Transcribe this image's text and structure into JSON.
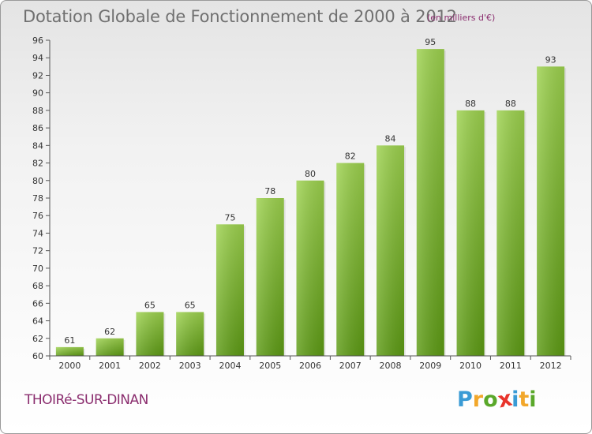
{
  "header": {
    "title": "Dotation Globale de Fonctionnement de 2000 à 2012",
    "unit_note": "(en milliers d'€)"
  },
  "footer": {
    "place_name": "THOIRé-SUR-DINAN",
    "logo_text": "Proxiti"
  },
  "colors": {
    "bar_top": "#9dd24e",
    "bar_bottom": "#5d9b14",
    "title": "#707070",
    "accent": "#8b2e6f",
    "logo": [
      "#3a9bd5",
      "#f2a72b",
      "#5aa82a",
      "#e8342b",
      "#3a9bd5",
      "#f2a72b",
      "#5aa82a"
    ]
  },
  "chart_data": {
    "type": "bar",
    "title": "Dotation Globale de Fonctionnement de 2000 à 2012",
    "subtitle": "(en milliers d'€)",
    "categories": [
      "2000",
      "2001",
      "2002",
      "2003",
      "2004",
      "2005",
      "2006",
      "2007",
      "2008",
      "2009",
      "2010",
      "2011",
      "2012"
    ],
    "values": [
      61,
      62,
      65,
      65,
      75,
      78,
      80,
      82,
      84,
      95,
      88,
      88,
      93
    ],
    "xlabel": "",
    "ylabel": "",
    "ylim": [
      60,
      96
    ],
    "yticks": [
      60,
      62,
      64,
      66,
      68,
      70,
      72,
      74,
      76,
      78,
      80,
      82,
      84,
      86,
      88,
      90,
      92,
      94,
      96
    ],
    "grid": false,
    "data_labels": true
  }
}
